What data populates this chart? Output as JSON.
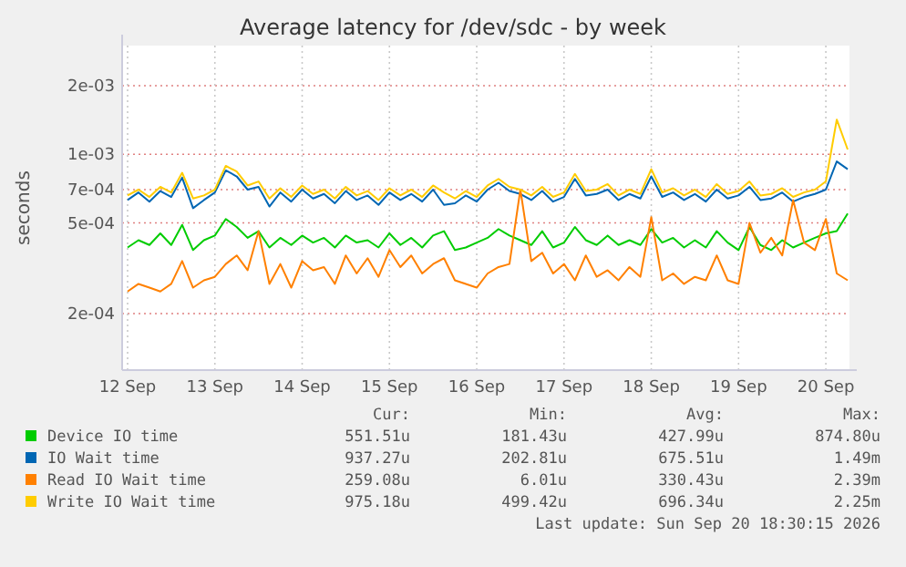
{
  "chart_data": {
    "type": "line",
    "title": "Average latency for /dev/sdc - by week",
    "ylabel": "seconds",
    "log": true,
    "grid": true,
    "legend": "bottom",
    "marker": "none",
    "line_style": "solid",
    "xlim": [
      "2026-09-12T10:30",
      "2026-09-20T18:30"
    ],
    "xticks": [
      {
        "value": "2026-09-12T12:00",
        "label": "12 Sep"
      },
      {
        "value": "2026-09-13T12:00",
        "label": "13 Sep"
      },
      {
        "value": "2026-09-14T12:00",
        "label": "14 Sep"
      },
      {
        "value": "2026-09-15T12:00",
        "label": "15 Sep"
      },
      {
        "value": "2026-09-16T12:00",
        "label": "16 Sep"
      },
      {
        "value": "2026-09-17T12:00",
        "label": "17 Sep"
      },
      {
        "value": "2026-09-18T12:00",
        "label": "18 Sep"
      },
      {
        "value": "2026-09-19T12:00",
        "label": "19 Sep"
      },
      {
        "value": "2026-09-20T12:00",
        "label": "20 Sep"
      }
    ],
    "ylim": [
      0.000113,
      0.003
    ],
    "yticks": [
      {
        "value": 0.0002,
        "label": "2e-04"
      },
      {
        "value": 0.0005,
        "label": "5e-04"
      },
      {
        "value": 0.0007,
        "label": "7e-04"
      },
      {
        "value": 0.001,
        "label": "1e-03"
      },
      {
        "value": 0.002,
        "label": "2e-03"
      }
    ],
    "x": [
      "2026-09-12T12:00",
      "2026-09-12T15:00",
      "2026-09-12T18:00",
      "2026-09-12T21:00",
      "2026-09-13T00:00",
      "2026-09-13T03:00",
      "2026-09-13T06:00",
      "2026-09-13T09:00",
      "2026-09-13T12:00",
      "2026-09-13T15:00",
      "2026-09-13T18:00",
      "2026-09-13T21:00",
      "2026-09-14T00:00",
      "2026-09-14T03:00",
      "2026-09-14T06:00",
      "2026-09-14T09:00",
      "2026-09-14T12:00",
      "2026-09-14T15:00",
      "2026-09-14T18:00",
      "2026-09-14T21:00",
      "2026-09-15T00:00",
      "2026-09-15T03:00",
      "2026-09-15T06:00",
      "2026-09-15T09:00",
      "2026-09-15T12:00",
      "2026-09-15T15:00",
      "2026-09-15T18:00",
      "2026-09-15T21:00",
      "2026-09-16T00:00",
      "2026-09-16T03:00",
      "2026-09-16T06:00",
      "2026-09-16T09:00",
      "2026-09-16T12:00",
      "2026-09-16T15:00",
      "2026-09-16T18:00",
      "2026-09-16T21:00",
      "2026-09-17T00:00",
      "2026-09-17T03:00",
      "2026-09-17T06:00",
      "2026-09-17T09:00",
      "2026-09-17T12:00",
      "2026-09-17T15:00",
      "2026-09-17T18:00",
      "2026-09-17T21:00",
      "2026-09-18T00:00",
      "2026-09-18T03:00",
      "2026-09-18T06:00",
      "2026-09-18T09:00",
      "2026-09-18T12:00",
      "2026-09-18T15:00",
      "2026-09-18T18:00",
      "2026-09-18T21:00",
      "2026-09-19T00:00",
      "2026-09-19T03:00",
      "2026-09-19T06:00",
      "2026-09-19T09:00",
      "2026-09-19T12:00",
      "2026-09-19T15:00",
      "2026-09-19T18:00",
      "2026-09-19T21:00",
      "2026-09-20T00:00",
      "2026-09-20T03:00",
      "2026-09-20T06:00",
      "2026-09-20T09:00",
      "2026-09-20T12:00",
      "2026-09-20T15:00",
      "2026-09-20T18:00"
    ],
    "series": [
      {
        "name": "Device IO time",
        "color": "#00cc00",
        "values": [
          0.00039,
          0.00042,
          0.0004,
          0.00045,
          0.0004,
          0.00049,
          0.00038,
          0.00042,
          0.00044,
          0.00052,
          0.00048,
          0.00043,
          0.00046,
          0.00039,
          0.00043,
          0.0004,
          0.00044,
          0.00041,
          0.00043,
          0.00039,
          0.00044,
          0.00041,
          0.00042,
          0.00039,
          0.00045,
          0.0004,
          0.00043,
          0.00039,
          0.00044,
          0.00046,
          0.00038,
          0.00039,
          0.00041,
          0.00043,
          0.00047,
          0.00044,
          0.00042,
          0.0004,
          0.00046,
          0.00039,
          0.00041,
          0.00048,
          0.00042,
          0.0004,
          0.00044,
          0.0004,
          0.00042,
          0.0004,
          0.00047,
          0.00041,
          0.00043,
          0.00039,
          0.00042,
          0.00039,
          0.00046,
          0.00041,
          0.00038,
          0.00048,
          0.0004,
          0.00038,
          0.00042,
          0.00039,
          0.00041,
          0.00043,
          0.00045,
          0.00046,
          0.00055
        ]
      },
      {
        "name": "IO Wait time",
        "color": "#0066b3",
        "values": [
          0.00063,
          0.00068,
          0.00062,
          0.00069,
          0.00065,
          0.00079,
          0.00058,
          0.00063,
          0.00068,
          0.00085,
          0.0008,
          0.0007,
          0.00072,
          0.00059,
          0.00068,
          0.00062,
          0.0007,
          0.00064,
          0.00067,
          0.00061,
          0.00069,
          0.00063,
          0.00066,
          0.0006,
          0.00068,
          0.00063,
          0.00067,
          0.00062,
          0.0007,
          0.0006,
          0.00061,
          0.00066,
          0.00062,
          0.0007,
          0.00075,
          0.00069,
          0.00067,
          0.00063,
          0.00069,
          0.00062,
          0.00065,
          0.00078,
          0.00066,
          0.00067,
          0.0007,
          0.00063,
          0.00067,
          0.00064,
          0.0008,
          0.00065,
          0.00068,
          0.00063,
          0.00067,
          0.00062,
          0.0007,
          0.00064,
          0.00066,
          0.00072,
          0.00063,
          0.00064,
          0.00068,
          0.00062,
          0.00065,
          0.00067,
          0.0007,
          0.00093,
          0.00086
        ]
      },
      {
        "name": "Read IO Wait time",
        "color": "#ff8000",
        "values": [
          0.00025,
          0.00027,
          0.00026,
          0.00025,
          0.00027,
          0.00034,
          0.00026,
          0.00028,
          0.00029,
          0.00033,
          0.00036,
          0.00031,
          0.00046,
          0.00027,
          0.00033,
          0.00026,
          0.00034,
          0.00031,
          0.00032,
          0.00027,
          0.00036,
          0.0003,
          0.00035,
          0.00029,
          0.00038,
          0.00032,
          0.00036,
          0.0003,
          0.00033,
          0.00035,
          0.00028,
          0.00027,
          0.00026,
          0.0003,
          0.00032,
          0.00033,
          0.0007,
          0.00034,
          0.00037,
          0.0003,
          0.00033,
          0.00028,
          0.00036,
          0.00029,
          0.00031,
          0.00028,
          0.00032,
          0.00029,
          0.00053,
          0.00028,
          0.0003,
          0.00027,
          0.00029,
          0.00028,
          0.00036,
          0.00028,
          0.00027,
          0.0005,
          0.00037,
          0.00043,
          0.00036,
          0.00063,
          0.00041,
          0.00038,
          0.00052,
          0.0003,
          0.00028
        ]
      },
      {
        "name": "Write IO Wait time",
        "color": "#ffcc00",
        "values": [
          0.00066,
          0.0007,
          0.00065,
          0.00072,
          0.00068,
          0.00083,
          0.00064,
          0.00066,
          0.0007,
          0.00089,
          0.00084,
          0.00073,
          0.00076,
          0.00064,
          0.00071,
          0.00065,
          0.00073,
          0.00067,
          0.0007,
          0.00064,
          0.00072,
          0.00066,
          0.00069,
          0.00063,
          0.00071,
          0.00066,
          0.0007,
          0.00065,
          0.00073,
          0.00068,
          0.00064,
          0.00069,
          0.00065,
          0.00073,
          0.00078,
          0.00072,
          0.0007,
          0.00066,
          0.00072,
          0.00065,
          0.00068,
          0.00082,
          0.00069,
          0.0007,
          0.00074,
          0.00066,
          0.0007,
          0.00067,
          0.00086,
          0.00068,
          0.00071,
          0.00066,
          0.0007,
          0.00065,
          0.00074,
          0.00067,
          0.00069,
          0.00076,
          0.00066,
          0.00067,
          0.00071,
          0.00065,
          0.00068,
          0.0007,
          0.00076,
          0.00142,
          0.00105
        ]
      }
    ],
    "annotations": [
      "Cur:",
      "Min:",
      "Avg:",
      "Max:",
      "551.51u",
      "181.43u",
      "427.99u",
      "874.80u",
      "937.27u",
      "202.81u",
      "675.51u",
      "1.49m",
      "259.08u",
      "6.01u",
      "330.43u",
      "2.39m",
      "975.18u",
      "499.42u",
      "696.34u",
      "2.25m",
      "Last update: Sun Sep 20 18:30:15 2026"
    ]
  }
}
